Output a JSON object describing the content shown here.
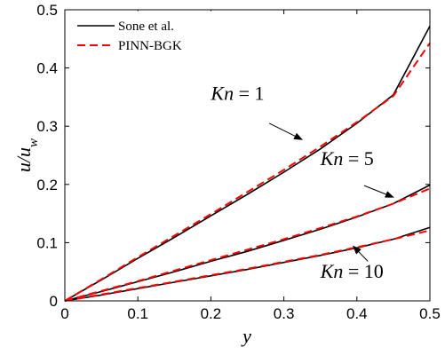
{
  "chart_data": {
    "type": "line",
    "xlabel": "y",
    "ylabel": "u/u",
    "ylabel_sub": "w",
    "xlim": [
      0,
      0.5
    ],
    "ylim": [
      0,
      0.5
    ],
    "xticks": [
      "0",
      "0.1",
      "0.2",
      "0.3",
      "0.4",
      "0.5"
    ],
    "yticks": [
      "0",
      "0.1",
      "0.2",
      "0.3",
      "0.4",
      "0.5"
    ],
    "legend_placement": "top-left",
    "legend": [
      {
        "name": "Sone et al.",
        "color": "#000000",
        "style": "solid"
      },
      {
        "name": "PINN-BGK",
        "color": "#ff0000",
        "style": "dashed"
      }
    ],
    "series": [
      {
        "name": "Sone et al.",
        "case": "Kn = 1",
        "color": "#000000",
        "style": "solid",
        "x": [
          0,
          0.05,
          0.1,
          0.15,
          0.2,
          0.25,
          0.3,
          0.35,
          0.4,
          0.45,
          0.5
        ],
        "y": [
          0.0,
          0.036,
          0.073,
          0.109,
          0.146,
          0.183,
          0.221,
          0.261,
          0.305,
          0.354,
          0.472
        ]
      },
      {
        "name": "PINN-BGK",
        "case": "Kn = 1",
        "color": "#ff0000",
        "style": "dashed",
        "x": [
          0,
          0.05,
          0.1,
          0.15,
          0.2,
          0.25,
          0.3,
          0.35,
          0.4,
          0.45,
          0.5
        ],
        "y": [
          0.0,
          0.037,
          0.075,
          0.112,
          0.149,
          0.187,
          0.225,
          0.265,
          0.307,
          0.352,
          0.443
        ]
      },
      {
        "name": "Sone et al.",
        "case": "Kn = 5",
        "color": "#000000",
        "style": "solid",
        "x": [
          0,
          0.05,
          0.1,
          0.15,
          0.2,
          0.25,
          0.3,
          0.35,
          0.4,
          0.45,
          0.5
        ],
        "y": [
          0.0,
          0.016,
          0.033,
          0.05,
          0.068,
          0.085,
          0.104,
          0.123,
          0.144,
          0.167,
          0.199
        ]
      },
      {
        "name": "PINN-BGK",
        "case": "Kn = 5",
        "color": "#ff0000",
        "style": "dashed",
        "x": [
          0,
          0.05,
          0.1,
          0.15,
          0.2,
          0.25,
          0.3,
          0.35,
          0.4,
          0.45,
          0.5
        ],
        "y": [
          0.0,
          0.017,
          0.034,
          0.052,
          0.07,
          0.088,
          0.106,
          0.125,
          0.145,
          0.167,
          0.193
        ]
      },
      {
        "name": "Sone et al.",
        "case": "Kn = 10",
        "color": "#000000",
        "style": "solid",
        "x": [
          0,
          0.05,
          0.1,
          0.15,
          0.2,
          0.25,
          0.3,
          0.35,
          0.4,
          0.45,
          0.5
        ],
        "y": [
          0.0,
          0.01,
          0.021,
          0.032,
          0.043,
          0.054,
          0.066,
          0.078,
          0.091,
          0.106,
          0.126
        ]
      },
      {
        "name": "PINN-BGK",
        "case": "Kn = 10",
        "color": "#ff0000",
        "style": "dashed",
        "x": [
          0,
          0.05,
          0.1,
          0.15,
          0.2,
          0.25,
          0.3,
          0.35,
          0.4,
          0.45,
          0.5
        ],
        "y": [
          0.0,
          0.011,
          0.022,
          0.033,
          0.044,
          0.055,
          0.067,
          0.079,
          0.092,
          0.106,
          0.121
        ]
      }
    ],
    "annotations": [
      {
        "label_italic": "Kn",
        "label_rest": " = 1",
        "text_at": [
          0.2,
          0.345
        ],
        "arrow_from": [
          0.28,
          0.305
        ],
        "arrow_to": [
          0.325,
          0.277
        ]
      },
      {
        "label_italic": "Kn",
        "label_rest": " = 5",
        "text_at": [
          0.35,
          0.233
        ],
        "arrow_from": [
          0.41,
          0.198
        ],
        "arrow_to": [
          0.45,
          0.178
        ]
      },
      {
        "label_italic": "Kn",
        "label_rest": " = 10",
        "text_at": [
          0.35,
          0.04
        ],
        "arrow_from": [
          0.415,
          0.068
        ],
        "arrow_to": [
          0.395,
          0.094
        ]
      }
    ]
  }
}
